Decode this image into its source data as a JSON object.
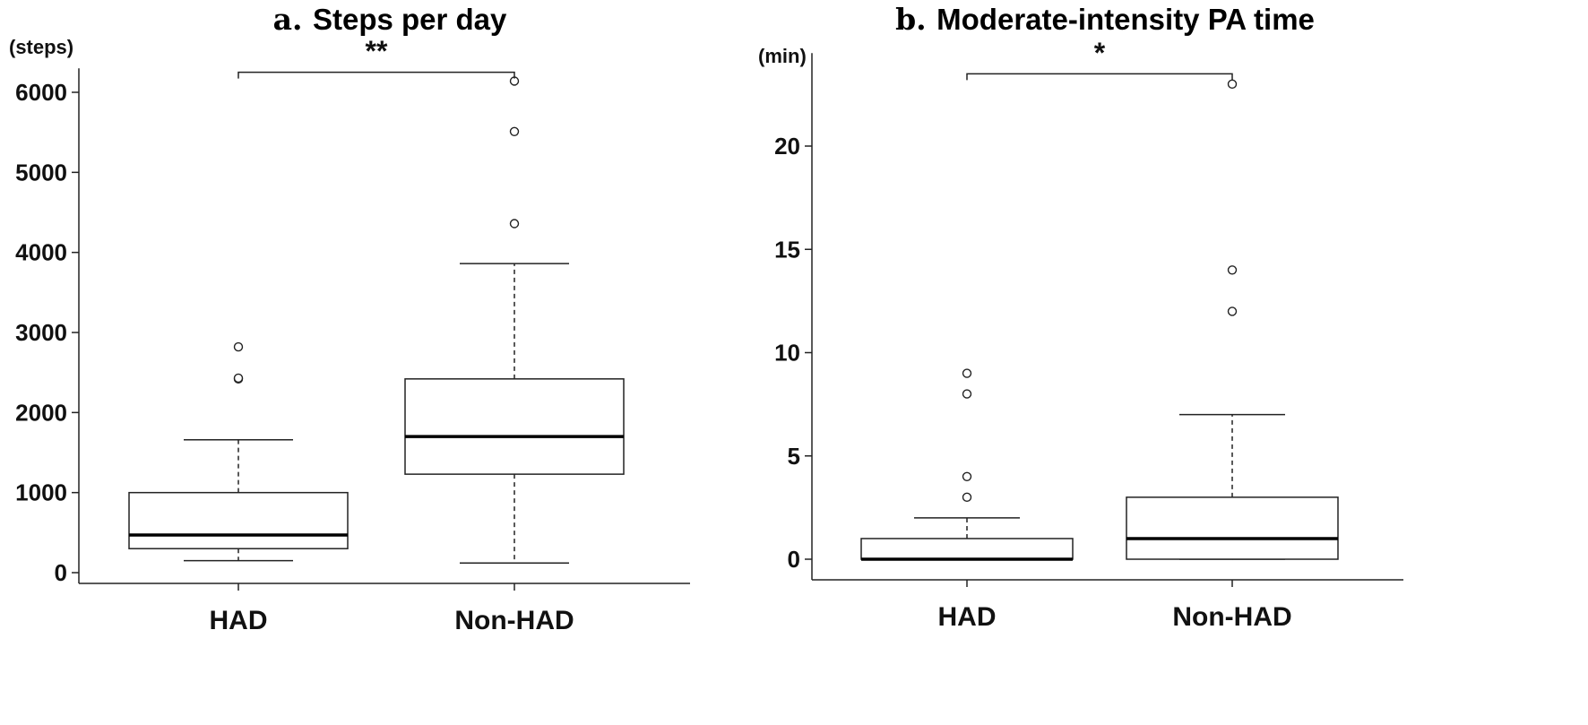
{
  "chart_data": [
    {
      "type": "boxplot",
      "panel_letter": "a.",
      "title": "Steps per day",
      "ylabel": "(steps)",
      "categories": [
        "HAD",
        "Non-HAD"
      ],
      "ylim": [
        -120,
        6300
      ],
      "yticks": [
        0,
        1000,
        2000,
        3000,
        4000,
        5000,
        6000
      ],
      "boxes": [
        {
          "category": "HAD",
          "whisker_low": 150,
          "q1": 300,
          "median": 470,
          "q3": 1000,
          "whisker_high": 1660,
          "outliers": [
            2420,
            2430,
            2820
          ]
        },
        {
          "category": "Non-HAD",
          "whisker_low": 120,
          "q1": 1230,
          "median": 1700,
          "q3": 2420,
          "whisker_high": 3860,
          "outliers": [
            4360,
            5510,
            6140
          ]
        }
      ],
      "significance": {
        "label": "**",
        "bracket_y": 6250
      }
    },
    {
      "type": "boxplot",
      "panel_letter": "b.",
      "title": "Moderate-intensity PA time",
      "ylabel": "(min)",
      "categories": [
        "HAD",
        "Non-HAD"
      ],
      "ylim": [
        -1,
        24.5
      ],
      "yticks": [
        0,
        5,
        10,
        15,
        20
      ],
      "boxes": [
        {
          "category": "HAD",
          "whisker_low": 0,
          "q1": 0,
          "median": 0,
          "q3": 1,
          "whisker_high": 2,
          "outliers": [
            3,
            4,
            8,
            9
          ]
        },
        {
          "category": "Non-HAD",
          "whisker_low": 0,
          "q1": 0,
          "median": 1,
          "q3": 3,
          "whisker_high": 7,
          "outliers": [
            12,
            14,
            23
          ]
        }
      ],
      "significance": {
        "label": "*",
        "bracket_y": 23.5
      }
    }
  ]
}
